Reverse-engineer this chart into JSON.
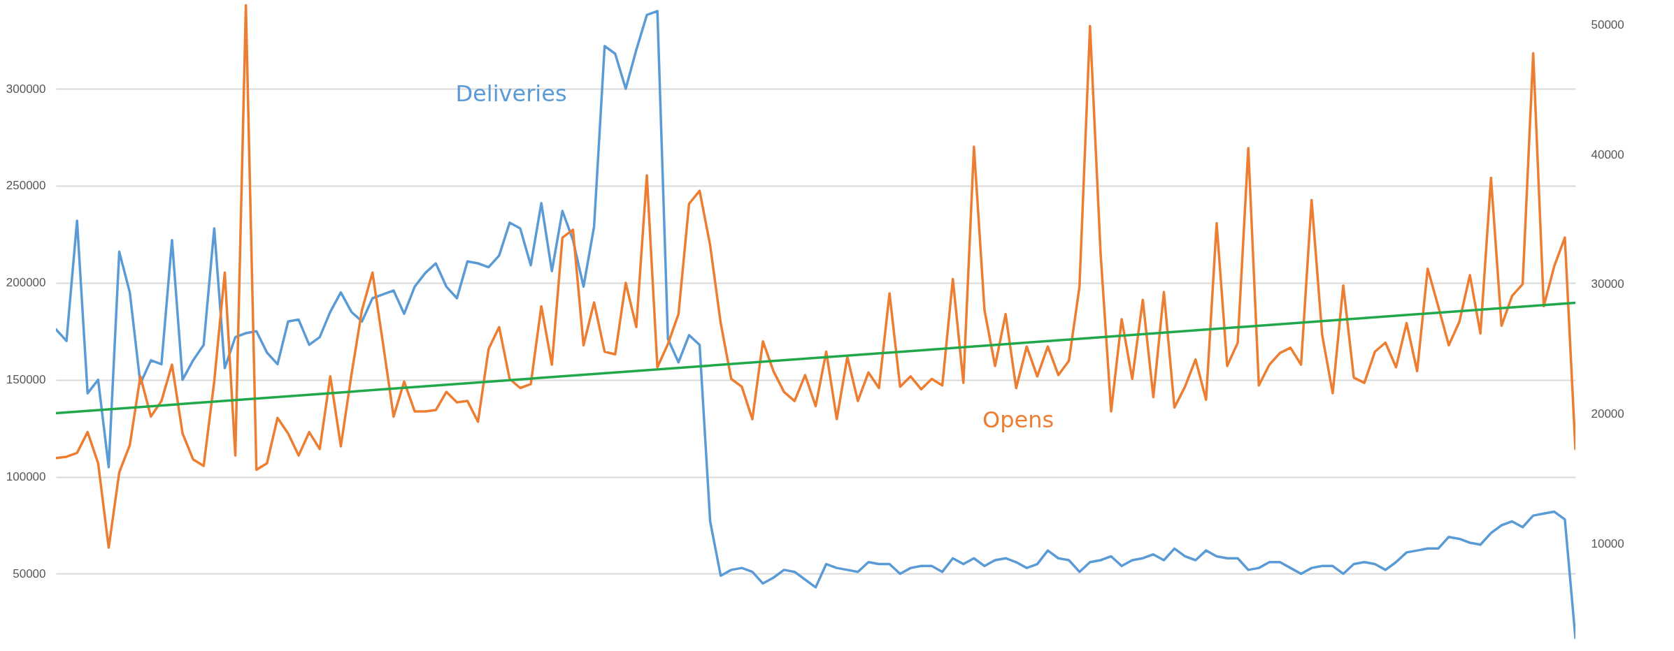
{
  "chart_data": {
    "type": "line",
    "categories": [
      null,
      null,
      null,
      null,
      null,
      null,
      null,
      null,
      null,
      null,
      null,
      null,
      null,
      null,
      null,
      null,
      null,
      null,
      null,
      null,
      null,
      null,
      null,
      null,
      null,
      null,
      null,
      null,
      null,
      null,
      null,
      null,
      null,
      null,
      null,
      null,
      null,
      null,
      null,
      null,
      null,
      null,
      null,
      null,
      null,
      null,
      null,
      null,
      null,
      null,
      null,
      null,
      null,
      null,
      null,
      null,
      null,
      null,
      null,
      null,
      null,
      null,
      null,
      null,
      null,
      null,
      null,
      null,
      null,
      null,
      null,
      null,
      null,
      null,
      null,
      null,
      null,
      null,
      null,
      null,
      null,
      null,
      null,
      null,
      null,
      null,
      null,
      null,
      null,
      null,
      null,
      null,
      null,
      null,
      null,
      null,
      null,
      null,
      null,
      null,
      null,
      null,
      null,
      null,
      null,
      null,
      null,
      null,
      null,
      null,
      null,
      null,
      null,
      null,
      null,
      null,
      null,
      null,
      null,
      null,
      null,
      null,
      null,
      null,
      null,
      null,
      null,
      null,
      null,
      null,
      null,
      null,
      null,
      null,
      null,
      null,
      null,
      null,
      null,
      null,
      null,
      null,
      null,
      null,
      null
    ],
    "series": [
      {
        "name": "Deliveries",
        "color": "#5b9bd5",
        "values": [
          176000,
          170000,
          232000,
          143000,
          150000,
          105000,
          216000,
          195000,
          148000,
          160000,
          158000,
          222000,
          150000,
          160000,
          168000,
          228000,
          156000,
          172000,
          174000,
          175000,
          164000,
          158000,
          180000,
          181000,
          168000,
          172000,
          185000,
          195000,
          185000,
          180000,
          192000,
          194000,
          196000,
          184000,
          198000,
          205000,
          210000,
          198000,
          192000,
          211000,
          210000,
          208000,
          214000,
          231000,
          228000,
          209000,
          241000,
          206000,
          237000,
          222000,
          198000,
          229000,
          322000,
          318000,
          300000,
          320000,
          338000,
          340000,
          171000,
          159000,
          173000,
          168000,
          77000,
          49000,
          52000,
          53000,
          51000,
          45000,
          48000,
          52000,
          51000,
          47000,
          43000,
          55000,
          53000,
          52000,
          51000,
          56000,
          55000,
          55000,
          50000,
          53000,
          54000,
          54000,
          51000,
          58000,
          55000,
          58000,
          54000,
          57000,
          58000,
          56000,
          53000,
          55000,
          62000,
          58000,
          57000,
          51000,
          56000,
          57000,
          59000,
          54000,
          57000,
          58000,
          60000,
          57000,
          63000,
          59000,
          57000,
          62000,
          59000,
          58000,
          58000,
          52000,
          53000,
          56000,
          56000,
          53000,
          50000,
          53000,
          54000,
          54000,
          50000,
          55000,
          56000,
          55000,
          52000,
          56000,
          61000,
          62000,
          63000,
          63000,
          69000,
          68000,
          66000,
          65000,
          71000,
          75000,
          77000,
          74000,
          80000,
          81000,
          82000,
          78000,
          17000
        ]
      },
      {
        "name": "Opens",
        "color": "#ed7d31",
        "axis": "y2",
        "values": [
          16600,
          16700,
          17000,
          18600,
          16200,
          9700,
          15500,
          17600,
          22900,
          19800,
          21000,
          23800,
          18500,
          16500,
          16000,
          22500,
          30900,
          16800,
          51500,
          15700,
          16200,
          19700,
          18500,
          16800,
          18600,
          17300,
          22900,
          17500,
          23000,
          28000,
          30900,
          25400,
          19800,
          22500,
          20200,
          20200,
          20300,
          21700,
          20900,
          21000,
          19400,
          25000,
          26700,
          22700,
          22000,
          22300,
          28300,
          23800,
          33600,
          34200,
          25300,
          28600,
          24800,
          24600,
          30100,
          26700,
          38400,
          23600,
          25400,
          27700,
          36200,
          37200,
          33000,
          27000,
          22700,
          22100,
          19600,
          25600,
          23300,
          21700,
          21000,
          23000,
          20600,
          24800,
          19600,
          24400,
          21000,
          23200,
          22000,
          29300,
          22100,
          22900,
          21900,
          22700,
          22200,
          30400,
          22400,
          40600,
          28000,
          23700,
          27700,
          22000,
          25200,
          22900,
          25200,
          23000,
          24100,
          29800,
          49900,
          32400,
          20200,
          27300,
          22700,
          28800,
          21300,
          29400,
          20500,
          22100,
          24200,
          21100,
          34700,
          23700,
          25500,
          40500,
          22200,
          23800,
          24700,
          25100,
          23800,
          36500,
          26100,
          21600,
          29900,
          22800,
          22400,
          24800,
          25500,
          23600,
          27000,
          23300,
          31200,
          28300,
          25300,
          27100,
          30700,
          26200,
          38200,
          26800,
          29100,
          30000,
          47800,
          28300,
          31400,
          33600,
          17300
        ]
      },
      {
        "type": "line",
        "color": "#21a84a",
        "values": [
          132800,
          null,
          null,
          null,
          null,
          null,
          null,
          null,
          null,
          null,
          null,
          null,
          null,
          null,
          null,
          null,
          null,
          null,
          null,
          null,
          null,
          null,
          null,
          null,
          null,
          null,
          null,
          null,
          null,
          null,
          null,
          null,
          null,
          null,
          null,
          null,
          null,
          null,
          null,
          null,
          null,
          null,
          null,
          null,
          null,
          null,
          null,
          null,
          null,
          null,
          null,
          null,
          null,
          null,
          null,
          null,
          null,
          null,
          null,
          null,
          null,
          null,
          null,
          null,
          null,
          null,
          null,
          null,
          null,
          null,
          null,
          null,
          null,
          null,
          null,
          null,
          null,
          null,
          null,
          null,
          null,
          null,
          null,
          null,
          null,
          null,
          null,
          null,
          null,
          null,
          null,
          null,
          null,
          null,
          null,
          null,
          null,
          null,
          null,
          null,
          null,
          null,
          null,
          null,
          null,
          null,
          null,
          null,
          null,
          null,
          null,
          null,
          null,
          null,
          null,
          null,
          null,
          null,
          null,
          null,
          null,
          null,
          null,
          null,
          null,
          null,
          null,
          null,
          null,
          null,
          null,
          null,
          null,
          null,
          null,
          null,
          null,
          null,
          null,
          null,
          null,
          null,
          null,
          null,
          189700
        ]
      }
    ],
    "ylim": [
      12000,
      345000
    ],
    "yticks": [
      50000,
      100000,
      150000,
      200000,
      250000,
      300000
    ],
    "y2lim": [
      2000,
      51800
    ],
    "y2ticks": [
      10000,
      20000,
      30000,
      40000,
      50000
    ],
    "grid": "y",
    "tick_labels": "y"
  }
}
